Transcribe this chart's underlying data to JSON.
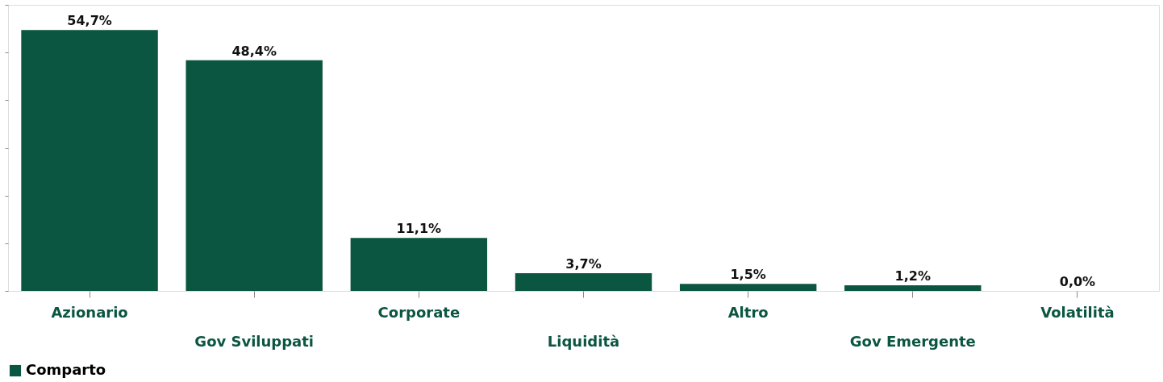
{
  "chart_data": {
    "type": "bar",
    "categories": [
      "Azionario",
      "Gov Sviluppati",
      "Corporate",
      "Liquidità",
      "Altro",
      "Gov Emergente",
      "Volatilità"
    ],
    "series": [
      {
        "name": "Comparto",
        "color": "#0b5640",
        "values": [
          54.7,
          48.4,
          11.1,
          3.7,
          1.5,
          1.2,
          0.0
        ],
        "value_labels": [
          "54,7%",
          "48,4%",
          "11,1%",
          "3,7%",
          "1,5%",
          "1,2%",
          "0,0%"
        ]
      }
    ],
    "ylim": [
      0,
      60
    ],
    "yticks": [
      {
        "value": 0,
        "label": null
      },
      {
        "value": 10,
        "label": null
      },
      {
        "value": 20,
        "label": null
      },
      {
        "value": 30,
        "label": null
      },
      {
        "value": 40,
        "label": null
      },
      {
        "value": 50,
        "label": null
      },
      {
        "value": 60,
        "label": null
      }
    ],
    "tick_labels": "x",
    "grid": false,
    "legend": "bottom"
  }
}
